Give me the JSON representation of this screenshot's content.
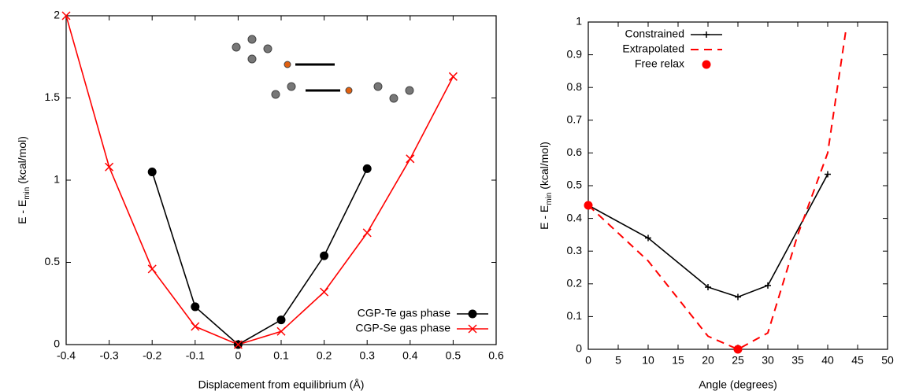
{
  "chart_data": [
    {
      "type": "line",
      "xlabel": "Displacement from equilibrium (Å)",
      "ylabel_parts": [
        "E - E",
        "min",
        " (kcal/mol)"
      ],
      "xlim": [
        -0.4,
        0.6
      ],
      "xticks": [
        -0.4,
        -0.3,
        -0.2,
        -0.1,
        0,
        0.1,
        0.2,
        0.3,
        0.4,
        0.5,
        0.6
      ],
      "ylim": [
        0,
        2
      ],
      "yticks": [
        0,
        0.5,
        1,
        1.5,
        2
      ],
      "legend": "lower right",
      "series": [
        {
          "name": "CGP-Te gas phase",
          "color": "#000000",
          "marker": "circle",
          "line": true,
          "x": [
            -0.2,
            -0.1,
            0,
            0.1,
            0.2,
            0.3
          ],
          "values": [
            1.05,
            0.23,
            0,
            0.15,
            0.54,
            1.07
          ]
        },
        {
          "name": "CGP-Se gas phase",
          "color": "#ff0000",
          "marker": "x",
          "line": true,
          "x": [
            -0.4,
            -0.3,
            -0.2,
            -0.1,
            0,
            0.1,
            0.2,
            0.3,
            0.4,
            0.5
          ],
          "values": [
            2.0,
            1.08,
            0.46,
            0.11,
            0,
            0.08,
            0.32,
            0.68,
            1.13,
            1.63
          ]
        }
      ]
    },
    {
      "type": "line",
      "xlabel": "Angle (degrees)",
      "ylabel_parts": [
        "E - E",
        "min",
        " (kcal/mol)"
      ],
      "xlim": [
        0,
        50
      ],
      "xticks": [
        0,
        5,
        10,
        15,
        20,
        25,
        30,
        35,
        40,
        45,
        50
      ],
      "ylim": [
        0,
        1
      ],
      "yticks": [
        0,
        0.1,
        0.2,
        0.3,
        0.4,
        0.5,
        0.6,
        0.7,
        0.8,
        0.9,
        1
      ],
      "legend": "upper left",
      "series": [
        {
          "name": "Constrained",
          "color": "#000000",
          "marker": "plus",
          "line": true,
          "x": [
            0,
            10,
            20,
            25,
            30,
            40
          ],
          "values": [
            0.44,
            0.34,
            0.19,
            0.16,
            0.195,
            0.535
          ]
        },
        {
          "name": "Extrapolated",
          "color": "#ff0000",
          "marker": "none",
          "line": true,
          "dash": true,
          "x": [
            0,
            10,
            20,
            25,
            30,
            35,
            40,
            43
          ],
          "values": [
            0.44,
            0.27,
            0.04,
            0,
            0.05,
            0.35,
            0.6,
            0.97
          ]
        },
        {
          "name": "Free relax",
          "color": "#ff0000",
          "marker": "circle",
          "line": false,
          "x": [
            0,
            25
          ],
          "values": [
            0.44,
            0
          ]
        }
      ]
    }
  ]
}
